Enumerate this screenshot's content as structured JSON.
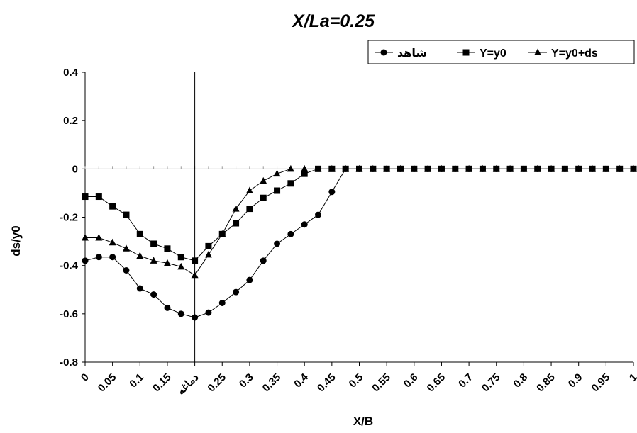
{
  "chart_data": {
    "type": "line",
    "title": "X/La=0.25",
    "xlabel": "X/B",
    "ylabel": "ds/y0",
    "ylim": [
      -0.8,
      0.4
    ],
    "yticks": [
      "0.4",
      "0.2",
      "0",
      "-0.2",
      "-0.4",
      "-0.6",
      "-0.8"
    ],
    "categories": [
      "0",
      "",
      "0.05",
      "",
      "0.1",
      "",
      "0.15",
      "",
      "دماغه",
      "",
      "0.25",
      "",
      "0.3",
      "",
      "0.35",
      "",
      "0.4",
      "",
      "0.45",
      "",
      "0.5",
      "",
      "0.55",
      "",
      "0.6",
      "",
      "0.65",
      "",
      "0.7",
      "",
      "0.75",
      "",
      "0.8",
      "",
      "0.85",
      "",
      "0.9",
      "",
      "0.95",
      "",
      "1"
    ],
    "vertical_marker_category": "دماغه",
    "legend_position": "top-right",
    "series": [
      {
        "name": "شاهد",
        "marker": "circle",
        "values": [
          -0.38,
          -0.365,
          -0.365,
          -0.42,
          -0.495,
          -0.52,
          -0.575,
          -0.6,
          -0.615,
          -0.595,
          -0.555,
          -0.51,
          -0.46,
          -0.38,
          -0.31,
          -0.27,
          -0.23,
          -0.19,
          -0.095,
          0,
          0,
          0,
          0,
          0,
          0,
          0,
          0,
          0,
          0,
          0,
          0,
          0,
          0,
          0,
          0,
          0,
          0,
          0,
          0,
          0,
          0
        ]
      },
      {
        "name": "Y=y0",
        "marker": "square",
        "values": [
          -0.115,
          -0.115,
          -0.155,
          -0.19,
          -0.27,
          -0.31,
          -0.33,
          -0.365,
          -0.38,
          -0.32,
          -0.27,
          -0.225,
          -0.165,
          -0.12,
          -0.09,
          -0.06,
          -0.02,
          0,
          0,
          0,
          0,
          0,
          0,
          0,
          0,
          0,
          0,
          0,
          0,
          0,
          0,
          0,
          0,
          0,
          0,
          0,
          0,
          0,
          0,
          0,
          0
        ]
      },
      {
        "name": "Y=y0+ds",
        "marker": "triangle",
        "values": [
          -0.285,
          -0.285,
          -0.305,
          -0.33,
          -0.36,
          -0.38,
          -0.39,
          -0.405,
          -0.44,
          -0.355,
          -0.27,
          -0.165,
          -0.09,
          -0.05,
          -0.02,
          0,
          0,
          0,
          0,
          0,
          0,
          0,
          0,
          0,
          0,
          0,
          0,
          0,
          0,
          0,
          0,
          0,
          0,
          0,
          0,
          0,
          0,
          0,
          0,
          0,
          0
        ]
      }
    ]
  }
}
